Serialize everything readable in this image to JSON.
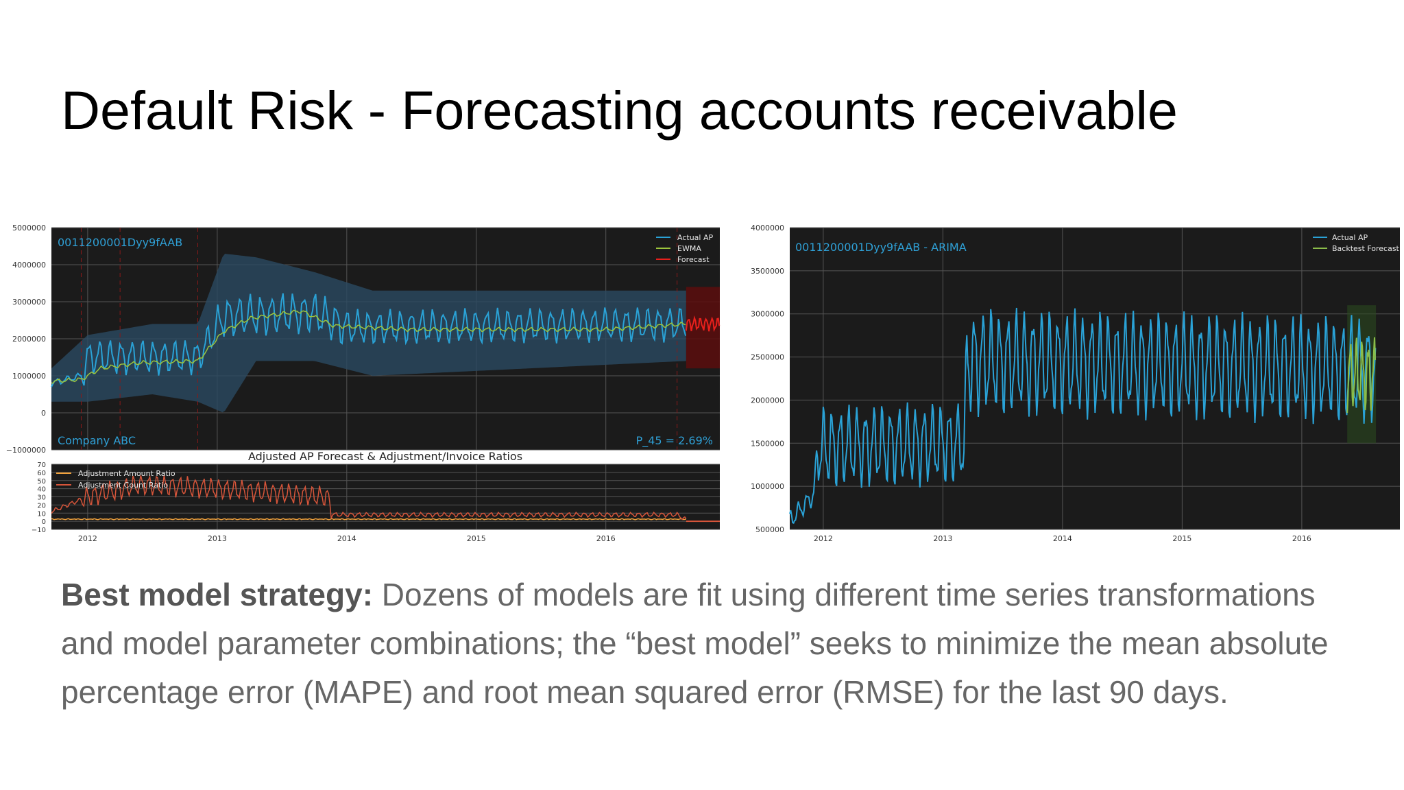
{
  "slide": {
    "title": "Default Risk - Forecasting accounts receivable",
    "body_label": "Best model strategy:",
    "body_text": "Dozens of models are fit using different time series transformations and model parameter combinations; the “best model” seeks to minimize the mean absolute percentage error (MAPE) and root mean squared error (RMSE) for the last 90 days."
  },
  "colors": {
    "plot_bg": "#1b1b1b",
    "actual": "#2aa2d6",
    "ewma": "#9cc53c",
    "forecast": "#e8201c",
    "band": "#2a4a62",
    "adj_amount": "#f0a13c",
    "adj_count": "#d7553a",
    "backtest": "#8bbd4a"
  },
  "chart_data": [
    {
      "type": "line",
      "annotation_top_left": "0011200001Dyy9fAAB",
      "annotation_bottom_left": "Company ABC",
      "annotation_bottom_right": "P_45 = 2.69%",
      "ylim": [
        -1000000,
        5000000
      ],
      "yticks": [
        5000000,
        4000000,
        3000000,
        2000000,
        1000000,
        0,
        -1000000
      ],
      "ytick_labels": [
        "5000000",
        "4000000",
        "3000000",
        "2000000",
        "1000000",
        "0",
        "−1000000"
      ],
      "xlim": [
        2011.72,
        2016.88
      ],
      "xticks": [
        2012,
        2013,
        2014,
        2015,
        2016
      ],
      "legend": [
        "Actual AP",
        "EWMA",
        "Forecast"
      ],
      "legend_position": "top-right",
      "series": [
        {
          "name": "Actual AP",
          "x_range": [
            2011.72,
            2016.62
          ],
          "segments": [
            [
              2011.72,
              800000
            ],
            [
              2011.95,
              1000000
            ],
            [
              2012.0,
              1500000
            ],
            [
              2012.5,
              1500000
            ],
            [
              2012.85,
              1500000
            ],
            [
              2013.05,
              2600000
            ],
            [
              2013.75,
              2700000
            ],
            [
              2014.0,
              2300000
            ],
            [
              2016.62,
              2400000
            ]
          ],
          "oscillation": 500000,
          "period": 0.083
        },
        {
          "name": "EWMA",
          "points": [
            [
              2011.72,
              850000
            ],
            [
              2011.95,
              900000
            ],
            [
              2012.1,
              1200000
            ],
            [
              2012.4,
              1350000
            ],
            [
              2012.85,
              1400000
            ],
            [
              2013.05,
              2200000
            ],
            [
              2013.25,
              2550000
            ],
            [
              2013.65,
              2750000
            ],
            [
              2013.9,
              2350000
            ],
            [
              2014.5,
              2250000
            ],
            [
              2015.5,
              2250000
            ],
            [
              2016.0,
              2250000
            ],
            [
              2016.62,
              2400000
            ]
          ]
        },
        {
          "name": "Forecast",
          "x_range": [
            2016.62,
            2016.88
          ],
          "level": 2400000,
          "oscillation": 200000,
          "band": [
            1200000,
            3400000
          ]
        }
      ],
      "confidence_band": [
        [
          2011.72,
          300000,
          1200000
        ],
        [
          2012.0,
          300000,
          2100000
        ],
        [
          2012.5,
          500000,
          2400000
        ],
        [
          2012.85,
          300000,
          2400000
        ],
        [
          2013.05,
          0,
          4300000
        ],
        [
          2013.3,
          1400000,
          4200000
        ],
        [
          2013.75,
          1400000,
          3800000
        ],
        [
          2014.2,
          1000000,
          3300000
        ],
        [
          2016.62,
          1400000,
          3300000
        ]
      ]
    },
    {
      "type": "line",
      "title": "Adjusted AP Forecast & Adjustment/Invoice Ratios",
      "ylim": [
        -10,
        70
      ],
      "yticks": [
        70,
        60,
        50,
        40,
        30,
        20,
        10,
        0,
        -10
      ],
      "ytick_labels": [
        "70",
        "60",
        "50",
        "40",
        "30",
        "20",
        "10",
        "0",
        "−10"
      ],
      "xlim": [
        2011.72,
        2016.88
      ],
      "xticks": [
        2012,
        2013,
        2014,
        2015,
        2016
      ],
      "xtick_labels": [
        "2012",
        "2013",
        "2014",
        "2015",
        "2016"
      ],
      "legend": [
        "Adjustment Amount Ratio",
        "Adjustment Count Ratio"
      ],
      "legend_position": "top-left",
      "series": [
        {
          "name": "Adjustment Amount Ratio",
          "x_range": [
            2011.72,
            2016.62
          ],
          "level": 2,
          "oscillation": 2
        },
        {
          "name": "Adjustment Count Ratio",
          "x_range": [
            2011.72,
            2016.62
          ],
          "segments": [
            [
              2011.72,
              12
            ],
            [
              2012.0,
              30
            ],
            [
              2012.4,
              45
            ],
            [
              2013.0,
              40
            ],
            [
              2013.85,
              30
            ],
            [
              2013.9,
              8
            ],
            [
              2016.55,
              8
            ],
            [
              2016.62,
              2
            ]
          ],
          "oscillation": 14
        }
      ]
    },
    {
      "type": "line",
      "annotation_top_left": "0011200001Dyy9fAAB - ARIMA",
      "ylim": [
        500000,
        4000000
      ],
      "yticks": [
        4000000,
        3500000,
        3000000,
        2500000,
        2000000,
        1500000,
        1000000,
        500000
      ],
      "ytick_labels": [
        "4000000",
        "3500000",
        "3000000",
        "2500000",
        "2000000",
        "1500000",
        "1000000",
        "500000"
      ],
      "xlim": [
        2011.72,
        2016.82
      ],
      "xticks": [
        2012,
        2013,
        2014,
        2015,
        2016
      ],
      "xtick_labels": [
        "2012",
        "2013",
        "2014",
        "2015",
        "2016"
      ],
      "legend": [
        "Actual AP",
        "Backtest Forecast"
      ],
      "legend_position": "top-right",
      "series": [
        {
          "name": "Actual AP",
          "x_range": [
            2011.72,
            2016.62
          ],
          "segments": [
            [
              2011.72,
              600000
            ],
            [
              2011.92,
              900000
            ],
            [
              2011.95,
              1450000
            ],
            [
              2013.18,
              1500000
            ],
            [
              2013.2,
              2450000
            ],
            [
              2016.62,
              2350000
            ]
          ],
          "oscillation": 650000,
          "period": 0.07
        },
        {
          "name": "Backtest Forecast",
          "x_range": [
            2016.38,
            2016.62
          ],
          "level": 2300000,
          "oscillation": 450000
        }
      ]
    }
  ]
}
